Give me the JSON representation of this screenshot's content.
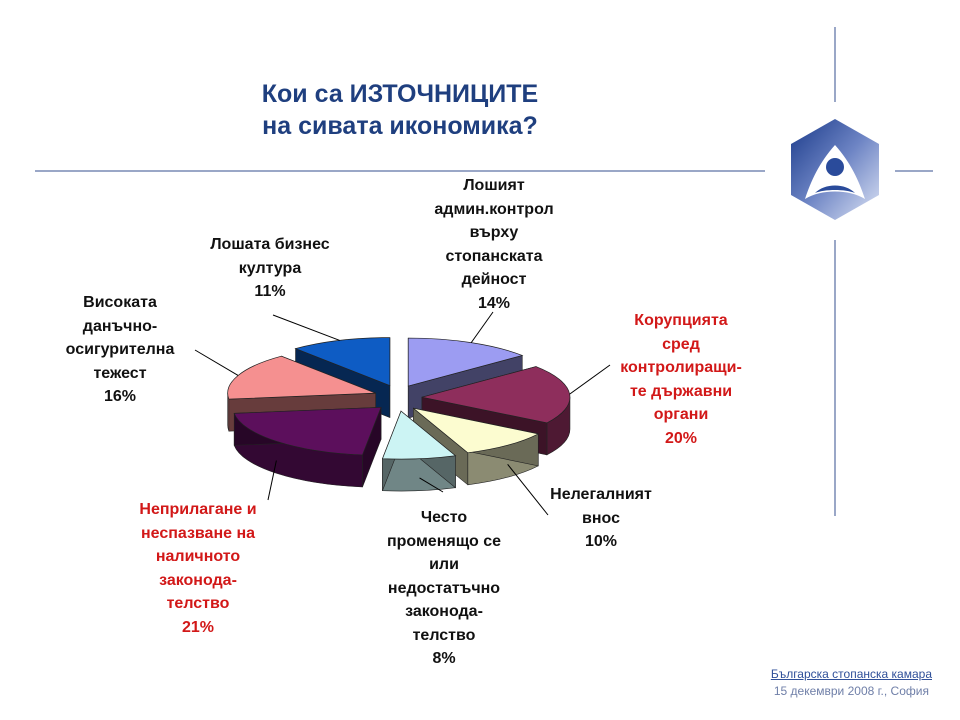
{
  "title": {
    "line1": "Кои са ИЗТОЧНИЦИТЕ",
    "line2": "на сивата икономика?"
  },
  "footer": {
    "organization": "Българска стопанска камара",
    "date": "15 декември 2008 г., София"
  },
  "chart_data": {
    "type": "pie",
    "title": "Кои са ИЗТОЧНИЦИТЕ на сивата икономика?",
    "unit": "%",
    "slices": [
      {
        "label": [
          "Лошият",
          "админ.контрол",
          "върху",
          "стопанската",
          "дейност"
        ],
        "value_label": "14%",
        "value": 14,
        "color": "#9c9cf2",
        "highlight": false
      },
      {
        "label": [
          "Корупцията",
          "сред",
          "контролиращи-",
          "те държавни",
          "органи"
        ],
        "value_label": "20%",
        "value": 20,
        "color": "#8e2e5c",
        "highlight": true
      },
      {
        "label": [
          "Нелегалният",
          "внос"
        ],
        "value_label": "10%",
        "value": 10,
        "color": "#fcfcd0",
        "highlight": false
      },
      {
        "label": [
          "Често",
          "променящо се",
          "или",
          "недостатъчно",
          "законода-",
          "телство"
        ],
        "value_label": "8%",
        "value": 8,
        "color": "#ccf4f4",
        "highlight": false
      },
      {
        "label": [
          "Неприлагане и",
          "неспазване на",
          "наличното",
          "законода-",
          "телство"
        ],
        "value_label": "21%",
        "value": 21,
        "color": "#5c0f5c",
        "highlight": true
      },
      {
        "label": [
          "Високата",
          "данъчно-",
          "осигурителна",
          "тежест"
        ],
        "value_label": "16%",
        "value": 16,
        "color": "#f59090",
        "highlight": false
      },
      {
        "label": [
          "Лошата бизнес",
          "култура"
        ],
        "value_label": "11%",
        "value": 11,
        "color": "#0e5cc4",
        "highlight": false
      }
    ]
  }
}
